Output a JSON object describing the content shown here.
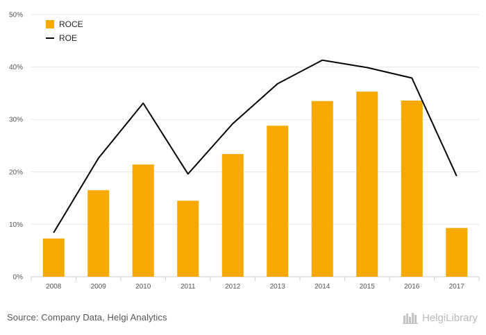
{
  "chart_data": {
    "type": "bar",
    "categories": [
      "2008",
      "2009",
      "2010",
      "2011",
      "2012",
      "2013",
      "2014",
      "2015",
      "2016",
      "2017"
    ],
    "series": [
      {
        "name": "ROCE",
        "type": "bar",
        "color": "#f7a900",
        "values": [
          7.3,
          16.5,
          21.4,
          14.5,
          23.4,
          28.8,
          33.5,
          35.3,
          33.6,
          9.3
        ]
      },
      {
        "name": "ROE",
        "type": "line",
        "color": "#000000",
        "values": [
          8.4,
          22.6,
          33.1,
          19.6,
          29.2,
          36.8,
          41.3,
          39.9,
          37.9,
          19.2
        ]
      }
    ],
    "yticks": [
      "0%",
      "10%",
      "20%",
      "30%",
      "40%",
      "50%"
    ],
    "ylim": [
      0,
      50
    ],
    "grid": true,
    "legend": "top-left"
  },
  "footer": {
    "source": "Source: Company Data, Helgi Analytics",
    "brand": "HelgiLibrary"
  }
}
